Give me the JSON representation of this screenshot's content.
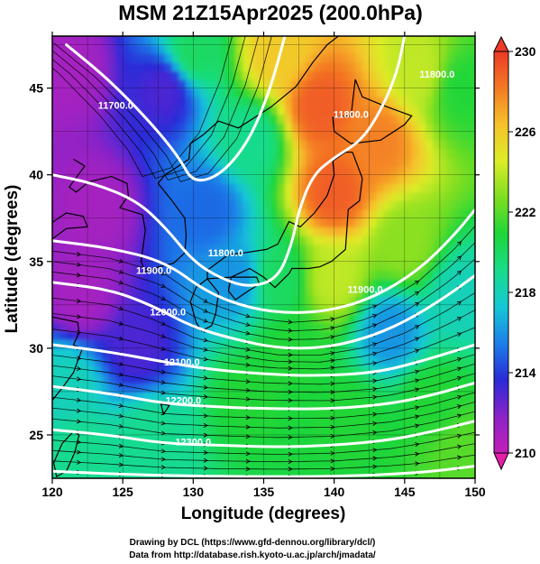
{
  "chart_data": {
    "type": "heatmap",
    "title": "MSM 21Z15Apr2025 (200.0hPa)",
    "xlabel": "Longitude (degrees)",
    "ylabel": "Latitude  (degrees)",
    "xlim": [
      120,
      150
    ],
    "ylim": [
      22.5,
      48
    ],
    "xticks": [
      120,
      125,
      130,
      135,
      140,
      145,
      150
    ],
    "yticks": [
      25,
      30,
      35,
      40,
      45
    ],
    "colorbar": {
      "min": 210,
      "max": 230,
      "ticks": [
        210,
        214,
        218,
        222,
        226,
        230
      ],
      "stops": [
        "#c41fb6",
        "#8b23c8",
        "#2a2ad8",
        "#1c7ee8",
        "#14c8d6",
        "#18dc8a",
        "#1ed63a",
        "#7ede20",
        "#dcec28",
        "#f6c22a",
        "#f47a24",
        "#ec3a26"
      ]
    },
    "temperature_field": {
      "description_units": "K",
      "anchors": [
        {
          "lon": 121,
          "lat": 46,
          "value": 211
        },
        {
          "lon": 123,
          "lat": 38,
          "value": 211
        },
        {
          "lon": 122,
          "lat": 33,
          "value": 211
        },
        {
          "lon": 126,
          "lat": 30,
          "value": 213
        },
        {
          "lon": 128,
          "lat": 45,
          "value": 213
        },
        {
          "lon": 131,
          "lat": 38,
          "value": 215
        },
        {
          "lon": 133,
          "lat": 34,
          "value": 216
        },
        {
          "lon": 134,
          "lat": 42,
          "value": 219
        },
        {
          "lon": 130,
          "lat": 47,
          "value": 220
        },
        {
          "lon": 136,
          "lat": 47,
          "value": 226
        },
        {
          "lon": 139,
          "lat": 44,
          "value": 229
        },
        {
          "lon": 140,
          "lat": 39,
          "value": 229
        },
        {
          "lon": 143,
          "lat": 42,
          "value": 228
        },
        {
          "lon": 146,
          "lat": 46,
          "value": 224
        },
        {
          "lon": 149,
          "lat": 45,
          "value": 221
        },
        {
          "lon": 145,
          "lat": 36,
          "value": 223
        },
        {
          "lon": 140,
          "lat": 34,
          "value": 224
        },
        {
          "lon": 136,
          "lat": 34,
          "value": 220
        },
        {
          "lon": 137,
          "lat": 30,
          "value": 221
        },
        {
          "lon": 144,
          "lat": 31,
          "value": 216
        },
        {
          "lon": 149,
          "lat": 33,
          "value": 218
        },
        {
          "lon": 147,
          "lat": 27,
          "value": 221
        },
        {
          "lon": 141,
          "lat": 26,
          "value": 221
        },
        {
          "lon": 134,
          "lat": 27,
          "value": 221
        },
        {
          "lon": 127,
          "lat": 25,
          "value": 219
        },
        {
          "lon": 122,
          "lat": 24,
          "value": 219
        },
        {
          "lon": 121,
          "lat": 28,
          "value": 218
        },
        {
          "lon": 149,
          "lat": 24,
          "value": 222
        }
      ]
    },
    "geopotential_height_contours": [
      {
        "label": "11700.0",
        "points": [
          [
            121,
            47.5
          ],
          [
            124,
            45.5
          ],
          [
            127,
            43
          ],
          [
            129,
            41
          ],
          [
            130,
            39.5
          ],
          [
            132,
            40
          ],
          [
            134,
            42
          ],
          [
            135.5,
            45
          ],
          [
            136.5,
            48
          ]
        ]
      },
      {
        "label": "11800.0",
        "points": [
          [
            120,
            40
          ],
          [
            123,
            39.5
          ],
          [
            126,
            38.5
          ],
          [
            128,
            37
          ],
          [
            130,
            35
          ],
          [
            132,
            34
          ],
          [
            134,
            33.5
          ],
          [
            136,
            34
          ],
          [
            137,
            36
          ],
          [
            137.5,
            38
          ],
          [
            138.5,
            40
          ],
          [
            140,
            41
          ],
          [
            142,
            42
          ],
          [
            143.5,
            44
          ],
          [
            144.5,
            46
          ],
          [
            145,
            48
          ]
        ]
      },
      {
        "label": "11900.0",
        "points": [
          [
            120,
            36.2
          ],
          [
            124,
            35.8
          ],
          [
            128,
            35
          ],
          [
            131,
            33.2
          ],
          [
            134,
            32.3
          ],
          [
            137,
            32
          ],
          [
            140,
            32.2
          ],
          [
            143,
            33
          ],
          [
            146,
            34.5
          ],
          [
            148.5,
            36.5
          ],
          [
            150,
            38
          ]
        ]
      },
      {
        "label": "12000.0",
        "points": [
          [
            120,
            33.8
          ],
          [
            124,
            33.4
          ],
          [
            127,
            32.5
          ],
          [
            130,
            31.2
          ],
          [
            133,
            30.5
          ],
          [
            136,
            30
          ],
          [
            139,
            30
          ],
          [
            142,
            30.5
          ],
          [
            145,
            31.5
          ],
          [
            148,
            33
          ],
          [
            150,
            34.2
          ]
        ]
      },
      {
        "label": "12100.0",
        "points": [
          [
            120,
            30.2
          ],
          [
            124,
            29.8
          ],
          [
            128,
            29.2
          ],
          [
            131,
            28.8
          ],
          [
            135,
            28.5
          ],
          [
            139,
            28.4
          ],
          [
            143,
            28.6
          ],
          [
            146,
            29.2
          ],
          [
            150,
            30.2
          ]
        ]
      },
      {
        "label": "12200.0",
        "points": [
          [
            120,
            27.8
          ],
          [
            124,
            27.4
          ],
          [
            128,
            26.8
          ],
          [
            132,
            26.6
          ],
          [
            136,
            26.5
          ],
          [
            140,
            26.5
          ],
          [
            144,
            26.8
          ],
          [
            147,
            27.3
          ],
          [
            150,
            28
          ]
        ]
      },
      {
        "label": "12300.0",
        "points": [
          [
            120,
            25.3
          ],
          [
            124,
            25
          ],
          [
            128,
            24.5
          ],
          [
            132,
            24.4
          ],
          [
            136,
            24.3
          ],
          [
            140,
            24.4
          ],
          [
            144,
            24.7
          ],
          [
            147,
            25.2
          ],
          [
            150,
            25.8
          ]
        ]
      },
      {
        "label": "",
        "points": [
          [
            120,
            22.9
          ],
          [
            126,
            22.7
          ],
          [
            132,
            22.6
          ],
          [
            140,
            22.6
          ],
          [
            146,
            22.8
          ],
          [
            150,
            23.2
          ]
        ]
      }
    ],
    "contour_labels": [
      {
        "text": "11700.0",
        "lon": 124.5,
        "lat": 43.8
      },
      {
        "text": "11800.0",
        "lon": 141.2,
        "lat": 43.3
      },
      {
        "text": "11800.0",
        "lon": 147.3,
        "lat": 45.6
      },
      {
        "text": "11800.0",
        "lon": 132.3,
        "lat": 35.3
      },
      {
        "text": "11900.0",
        "lon": 127.2,
        "lat": 34.3
      },
      {
        "text": "11900.0",
        "lon": 142.2,
        "lat": 33.2
      },
      {
        "text": "12000.0",
        "lon": 128.2,
        "lat": 31.9
      },
      {
        "text": "12100.0",
        "lon": 129.2,
        "lat": 29.0
      },
      {
        "text": "12200.0",
        "lon": 129.3,
        "lat": 26.8
      },
      {
        "text": "12300.0",
        "lon": 130.0,
        "lat": 24.4
      }
    ],
    "wind_vectors": "dense field of streamlines/arrows following height contours",
    "map": "coastlines and 2.5-degree grid",
    "credits": [
      "Drawing by DCL (https://www.gfd-dennou.org/library/dcl/)",
      "Data from http://database.rish.kyoto-u.ac.jp/arch/jmadata/"
    ]
  }
}
